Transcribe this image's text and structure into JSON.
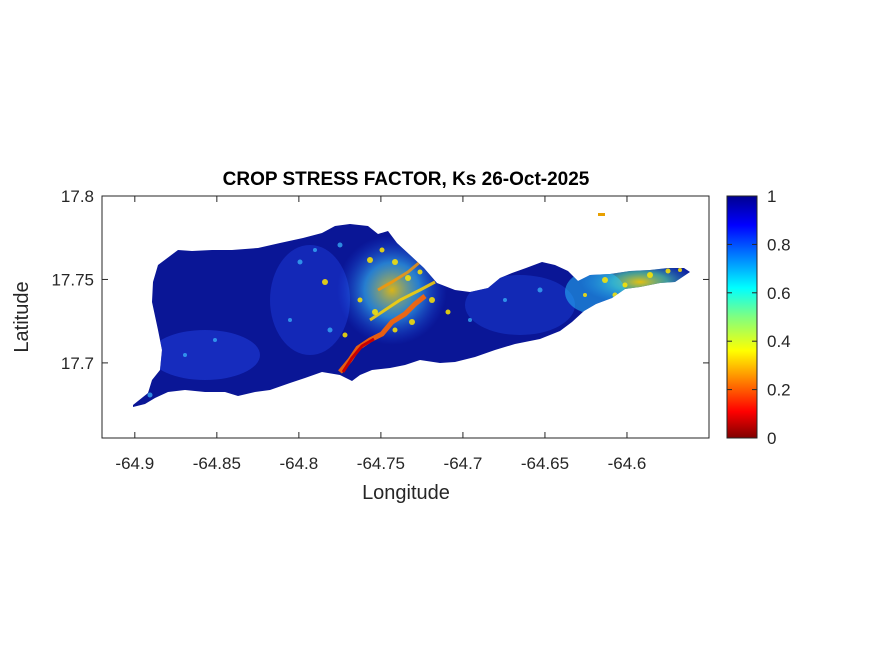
{
  "figure": {
    "title": "CROP STRESS FACTOR, Ks  26-Oct-2025"
  },
  "map": {
    "xlabel": "Longitude",
    "ylabel": "Latitude",
    "xlim": [
      -64.92,
      -64.55
    ],
    "ylim": [
      17.655,
      17.8
    ],
    "xticks": [
      -64.9,
      -64.85,
      -64.8,
      -64.75,
      -64.7,
      -64.65,
      -64.6
    ],
    "xtick_labels": [
      "-64.9",
      "-64.85",
      "-64.8",
      "-64.75",
      "-64.7",
      "-64.65",
      "-64.6"
    ],
    "yticks": [
      17.7,
      17.75,
      17.8
    ],
    "ytick_labels": [
      "17.7",
      "17.75",
      "17.8"
    ],
    "field": "Crop stress factor Ks",
    "region_fill_dominant_value": 1.0,
    "background_color": "#ffffff",
    "land_color_dominant": "#0a1696"
  },
  "colorbar": {
    "colormap": "jet",
    "range": [
      0,
      1
    ],
    "ticks": [
      0,
      0.2,
      0.4,
      0.6,
      0.8,
      1
    ],
    "tick_labels": [
      "0",
      "0.2",
      "0.4",
      "0.6",
      "0.8",
      "1"
    ],
    "colors": [
      "#800000",
      "#ff0000",
      "#ff8000",
      "#ffff00",
      "#80ff80",
      "#00ffff",
      "#0080ff",
      "#0000ff",
      "#000090"
    ]
  }
}
